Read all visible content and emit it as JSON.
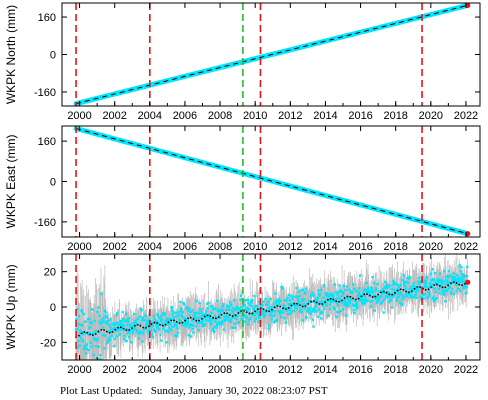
{
  "footer": {
    "label": "Plot Last Updated:",
    "timestamp": "Sunday, January 30, 2022 08:23:07 PST"
  },
  "colors": {
    "data": "#00e5ff",
    "errorbar": "#b0b0b0",
    "model": "#000000",
    "event_red": "#e8131a",
    "event_green": "#2db82d",
    "latest": "#e8131a"
  },
  "chart_data": [
    {
      "type": "scatter",
      "ylabel": "WKPK North (mm)",
      "xlim": [
        1999.0,
        2022.8
      ],
      "ylim": [
        -220,
        220
      ],
      "xticks": [
        2000,
        2002,
        2004,
        2006,
        2008,
        2010,
        2012,
        2014,
        2016,
        2018,
        2020,
        2022
      ],
      "yticks": [
        -160,
        0,
        160
      ],
      "grid": false,
      "start": [
        1999.8,
        -210
      ],
      "end": [
        2022.1,
        210
      ],
      "spread": 3,
      "red_events": [
        1999.8,
        2004.0,
        2010.3,
        2019.5
      ],
      "green_events": [
        2009.3
      ]
    },
    {
      "type": "scatter",
      "ylabel": "WKPK East (mm)",
      "xlim": [
        1999.0,
        2022.8
      ],
      "ylim": [
        -220,
        220
      ],
      "xticks": [
        2000,
        2002,
        2004,
        2006,
        2008,
        2010,
        2012,
        2014,
        2016,
        2018,
        2020,
        2022
      ],
      "yticks": [
        -160,
        0,
        160
      ],
      "grid": false,
      "start": [
        1999.8,
        210
      ],
      "end": [
        2022.1,
        -207
      ],
      "spread": 3,
      "red_events": [
        1999.8,
        2004.0,
        2010.3,
        2019.5
      ],
      "green_events": [
        2009.3
      ]
    },
    {
      "type": "scatter",
      "ylabel": "WKPK Up (mm)",
      "xlim": [
        1999.0,
        2022.8
      ],
      "ylim": [
        -30,
        30
      ],
      "xticks": [
        2000,
        2002,
        2004,
        2006,
        2008,
        2010,
        2012,
        2014,
        2016,
        2018,
        2020,
        2022
      ],
      "yticks": [
        -20,
        0,
        20
      ],
      "grid": false,
      "start": [
        1999.8,
        -16
      ],
      "end": [
        2022.1,
        14
      ],
      "spread": 8,
      "red_events": [
        1999.8,
        2004.0,
        2010.3,
        2019.5
      ],
      "green_events": [
        2009.3
      ]
    }
  ]
}
